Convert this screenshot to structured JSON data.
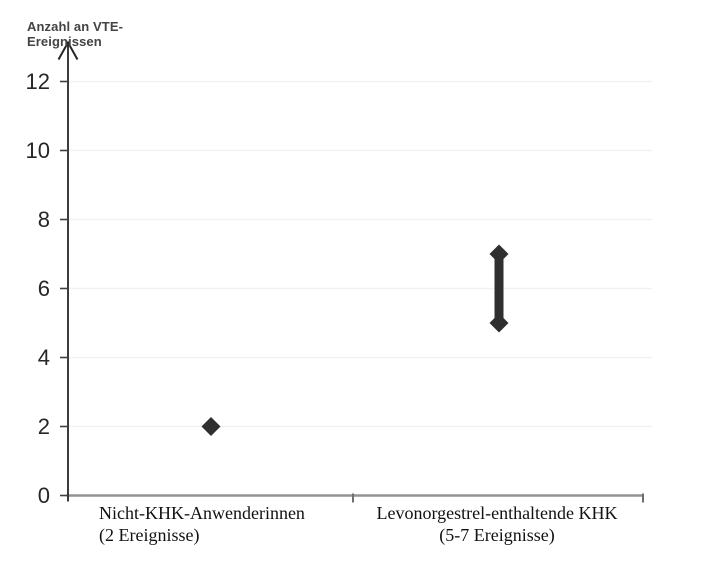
{
  "colors": {
    "background": "#ffffff",
    "marker": "#2f2f2f",
    "x_axis": "#939393",
    "y_axis": "#262626",
    "y_tick": "#404040",
    "gridline": "#f1f1f1",
    "y_tick_label": "#262626",
    "y_axis_title": "#444444",
    "category_label": "#111111"
  },
  "chart_data": {
    "type": "scatter",
    "description": "Dot and range plot of number of VTE events per group",
    "y_axis": {
      "label_line1": "Anzahl an VTE-",
      "label_line2": "Ereignissen",
      "ticks": [
        0,
        2,
        4,
        6,
        8,
        10,
        12
      ],
      "range": [
        0,
        13
      ],
      "gridlines": true,
      "arrow_at_top": true
    },
    "x_axis": {
      "categories": [
        {
          "label_line1": "Nicht-KHK-Anwenderinnen",
          "label_line2": "(2 Ereignisse)",
          "marker": "diamond",
          "value": 2
        },
        {
          "label_line1": "Levonorgestrel-enthaltende KHK",
          "label_line2": "(5-7 Ereignisse)",
          "marker": "range-bar-with-diamond-ends",
          "value_min": 5,
          "value_max": 7
        }
      ]
    }
  }
}
